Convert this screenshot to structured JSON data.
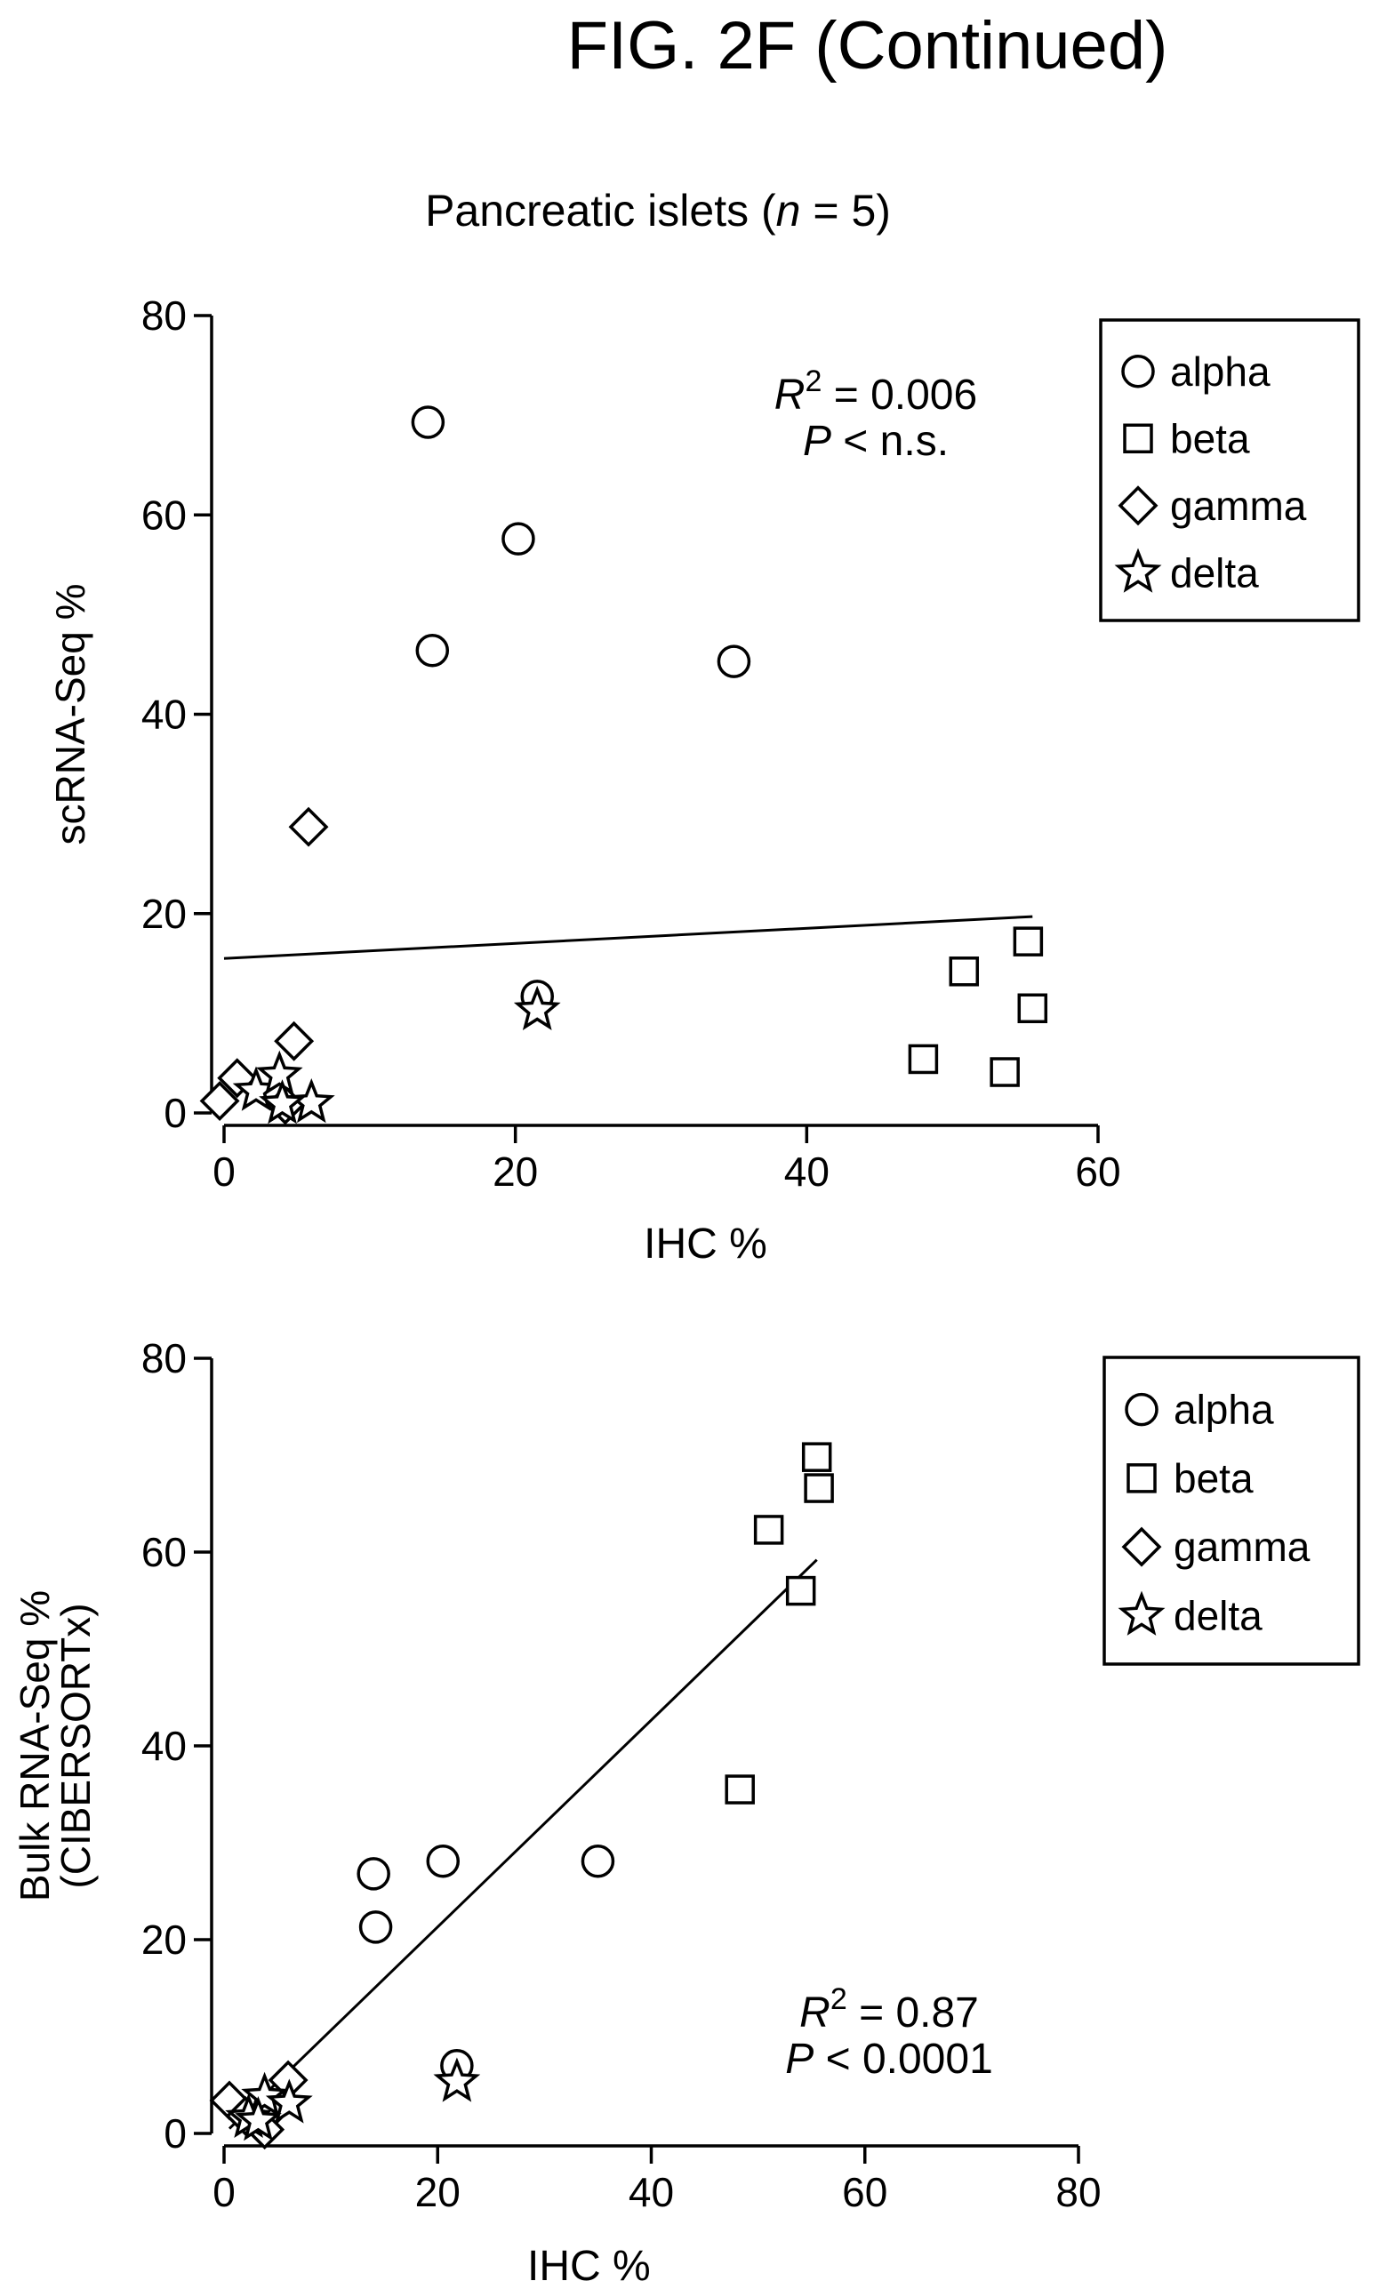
{
  "figure_title": "FIG. 2F (Continued)",
  "plot_title": "Pancreatic islets (",
  "plot_title_n": "n",
  "plot_title_suffix": " = 5)",
  "chart_data": [
    {
      "type": "scatter",
      "title": "",
      "xlabel": "IHC %",
      "ylabel": "scRNA-Seq %",
      "xlim": [
        0,
        60
      ],
      "ylim": [
        0,
        80
      ],
      "xticks": [
        0,
        20,
        40,
        60
      ],
      "yticks": [
        0,
        20,
        40,
        60,
        80
      ],
      "legend": [
        "alpha",
        "beta",
        "gamma",
        "delta"
      ],
      "legend_position": "top-right",
      "grid": false,
      "stats": {
        "r2_label": "R",
        "r2_value": "= 0.006",
        "p_label": "P",
        "p_value": "< n.s."
      },
      "fit_line": {
        "x": [
          0,
          55.5
        ],
        "y": [
          15.5,
          19.7
        ]
      },
      "series": [
        {
          "name": "alpha",
          "marker": "circle",
          "x": [
            14,
            20.2,
            14.3,
            35,
            21.5
          ],
          "y": [
            69.3,
            57.6,
            46.4,
            45.3,
            11.7
          ]
        },
        {
          "name": "beta",
          "marker": "square",
          "x": [
            55.2,
            50.8,
            55.5,
            48,
            53.6
          ],
          "y": [
            17.2,
            14.2,
            10.5,
            5.4,
            4.1
          ]
        },
        {
          "name": "gamma",
          "marker": "diamond",
          "x": [
            5.8,
            0.9,
            4.8,
            -0.3,
            4.2
          ],
          "y": [
            28.7,
            3.5,
            7.2,
            1.2,
            0.8
          ]
        },
        {
          "name": "delta",
          "marker": "star",
          "x": [
            21.5,
            2.2,
            3.8,
            6,
            4
          ],
          "y": [
            10.3,
            2.2,
            3.8,
            1,
            0.9
          ]
        }
      ]
    },
    {
      "type": "scatter",
      "title": "",
      "xlabel": "IHC %",
      "ylabel": "Bulk RNA-Seq %",
      "ylabel2": "(CIBERSORTx)",
      "xlim": [
        0,
        80
      ],
      "ylim": [
        0,
        80
      ],
      "xticks": [
        0,
        20,
        40,
        60,
        80
      ],
      "yticks": [
        0,
        20,
        40,
        60,
        80
      ],
      "legend": [
        "alpha",
        "beta",
        "gamma",
        "delta"
      ],
      "legend_position": "top-right",
      "grid": false,
      "stats": {
        "r2_label": "R",
        "r2_value": "= 0.87",
        "p_label": "P",
        "p_value": "< 0.0001"
      },
      "fit_line": {
        "x": [
          0.5,
          55.5
        ],
        "y": [
          0.5,
          59.2
        ]
      },
      "series": [
        {
          "name": "alpha",
          "marker": "circle",
          "x": [
            14,
            14.2,
            20.5,
            35,
            21.8
          ],
          "y": [
            26.8,
            21.3,
            28.1,
            28.1,
            7
          ]
        },
        {
          "name": "beta",
          "marker": "square",
          "x": [
            55.5,
            55.7,
            51,
            54,
            48.3
          ],
          "y": [
            69.8,
            66.6,
            62.3,
            56,
            35.5
          ]
        },
        {
          "name": "gamma",
          "marker": "diamond",
          "x": [
            0.5,
            6,
            4.3,
            3.8,
            2
          ],
          "y": [
            3.4,
            5.5,
            2.3,
            0.4,
            1.8
          ]
        },
        {
          "name": "delta",
          "marker": "star",
          "x": [
            21.8,
            3.8,
            2.3,
            6.1,
            3.2
          ],
          "y": [
            5.3,
            3.8,
            1.6,
            3.1,
            1.3
          ]
        }
      ]
    }
  ]
}
